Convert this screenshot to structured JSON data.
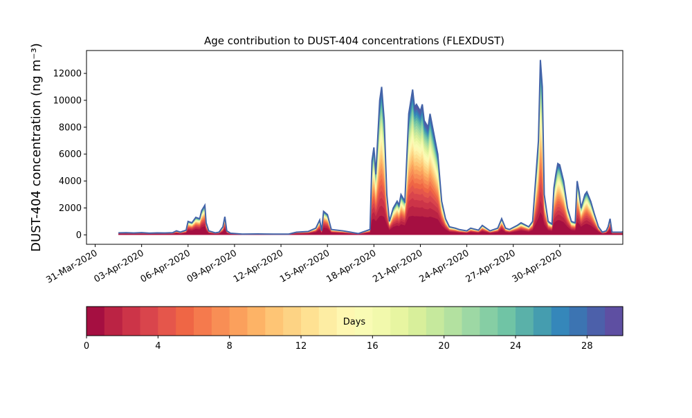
{
  "chart_data": {
    "type": "area",
    "title": "Age contribution to DUST-404 concentrations (FLEXDUST)",
    "ylabel": "DUST-404 concentration (ng m⁻³)",
    "xlabel": "",
    "stacked": true,
    "x_range": [
      "2020-03-31",
      "2020-05-03"
    ],
    "ylim": [
      -700,
      13700
    ],
    "y_ticks": [
      0,
      2000,
      4000,
      6000,
      8000,
      10000,
      12000
    ],
    "x_ticks": [
      "31-Mar-2020",
      "03-Apr-2020",
      "06-Apr-2020",
      "09-Apr-2020",
      "12-Apr-2020",
      "15-Apr-2020",
      "18-Apr-2020",
      "21-Apr-2020",
      "24-Apr-2020",
      "27-Apr-2020",
      "30-Apr-2020"
    ],
    "x_tick_dates": [
      "2020-03-31",
      "2020-04-03",
      "2020-04-06",
      "2020-04-09",
      "2020-04-12",
      "2020-04-15",
      "2020-04-18",
      "2020-04-21",
      "2020-04-24",
      "2020-04-27",
      "2020-04-30"
    ],
    "grid": false,
    "total_series": {
      "name": "",
      "points": [
        [
          "2020-04-01T12:00",
          150
        ],
        [
          "2020-04-02T00:00",
          160
        ],
        [
          "2020-04-02T12:00",
          140
        ],
        [
          "2020-04-03T00:00",
          170
        ],
        [
          "2020-04-03T12:00",
          130
        ],
        [
          "2020-04-04T00:00",
          150
        ],
        [
          "2020-04-04T12:00",
          140
        ],
        [
          "2020-04-05T00:00",
          160
        ],
        [
          "2020-04-05T06:00",
          300
        ],
        [
          "2020-04-05T12:00",
          200
        ],
        [
          "2020-04-05T21:00",
          350
        ],
        [
          "2020-04-06T00:00",
          1000
        ],
        [
          "2020-04-06T06:00",
          900
        ],
        [
          "2020-04-06T12:00",
          1300
        ],
        [
          "2020-04-06T18:00",
          1200
        ],
        [
          "2020-04-06T21:00",
          1800
        ],
        [
          "2020-04-07T02:00",
          2200
        ],
        [
          "2020-04-07T04:00",
          900
        ],
        [
          "2020-04-07T08:00",
          300
        ],
        [
          "2020-04-07T18:00",
          150
        ],
        [
          "2020-04-08T00:00",
          200
        ],
        [
          "2020-04-08T06:00",
          600
        ],
        [
          "2020-04-08T09:00",
          1350
        ],
        [
          "2020-04-08T12:00",
          300
        ],
        [
          "2020-04-08T18:00",
          120
        ],
        [
          "2020-04-09T12:00",
          60
        ],
        [
          "2020-04-10T12:00",
          70
        ],
        [
          "2020-04-11T12:00",
          60
        ],
        [
          "2020-04-12T12:00",
          60
        ],
        [
          "2020-04-13T00:00",
          200
        ],
        [
          "2020-04-13T18:00",
          250
        ],
        [
          "2020-04-14T06:00",
          500
        ],
        [
          "2020-04-14T12:00",
          1100
        ],
        [
          "2020-04-14T15:00",
          300
        ],
        [
          "2020-04-14T18:00",
          1750
        ],
        [
          "2020-04-15T00:00",
          1500
        ],
        [
          "2020-04-15T06:00",
          400
        ],
        [
          "2020-04-16T00:00",
          300
        ],
        [
          "2020-04-16T12:00",
          200
        ],
        [
          "2020-04-17T00:00",
          100
        ],
        [
          "2020-04-17T12:00",
          300
        ],
        [
          "2020-04-17T18:00",
          400
        ],
        [
          "2020-04-17T21:00",
          5500
        ],
        [
          "2020-04-18T00:00",
          6500
        ],
        [
          "2020-04-18T03:00",
          4500
        ],
        [
          "2020-04-18T09:00",
          10000
        ],
        [
          "2020-04-18T12:00",
          11000
        ],
        [
          "2020-04-18T16:00",
          8500
        ],
        [
          "2020-04-18T20:00",
          3000
        ],
        [
          "2020-04-19T00:00",
          1000
        ],
        [
          "2020-04-19T06:00",
          2000
        ],
        [
          "2020-04-19T12:00",
          2500
        ],
        [
          "2020-04-19T15:00",
          2200
        ],
        [
          "2020-04-19T18:00",
          3000
        ],
        [
          "2020-04-20T00:00",
          2500
        ],
        [
          "2020-04-20T06:00",
          9000
        ],
        [
          "2020-04-20T12:00",
          10800
        ],
        [
          "2020-04-20T15:00",
          9500
        ],
        [
          "2020-04-20T18:00",
          9700
        ],
        [
          "2020-04-21T00:00",
          9200
        ],
        [
          "2020-04-21T03:00",
          9700
        ],
        [
          "2020-04-21T06:00",
          8500
        ],
        [
          "2020-04-21T12:00",
          8000
        ],
        [
          "2020-04-21T15:00",
          9000
        ],
        [
          "2020-04-21T21:00",
          7500
        ],
        [
          "2020-04-22T03:00",
          6000
        ],
        [
          "2020-04-22T09:00",
          2500
        ],
        [
          "2020-04-22T15:00",
          1200
        ],
        [
          "2020-04-22T21:00",
          600
        ],
        [
          "2020-04-23T06:00",
          500
        ],
        [
          "2020-04-23T12:00",
          400
        ],
        [
          "2020-04-24T00:00",
          300
        ],
        [
          "2020-04-24T06:00",
          500
        ],
        [
          "2020-04-24T18:00",
          350
        ],
        [
          "2020-04-25T00:00",
          700
        ],
        [
          "2020-04-25T06:00",
          500
        ],
        [
          "2020-04-25T12:00",
          300
        ],
        [
          "2020-04-26T00:00",
          500
        ],
        [
          "2020-04-26T06:00",
          1200
        ],
        [
          "2020-04-26T12:00",
          500
        ],
        [
          "2020-04-26T18:00",
          400
        ],
        [
          "2020-04-27T06:00",
          700
        ],
        [
          "2020-04-27T12:00",
          900
        ],
        [
          "2020-04-28T00:00",
          600
        ],
        [
          "2020-04-28T06:00",
          1000
        ],
        [
          "2020-04-28T15:00",
          7000
        ],
        [
          "2020-04-28T18:00",
          13000
        ],
        [
          "2020-04-28T21:00",
          11000
        ],
        [
          "2020-04-29T00:00",
          3000
        ],
        [
          "2020-04-29T06:00",
          1000
        ],
        [
          "2020-04-29T12:00",
          800
        ],
        [
          "2020-04-29T15:00",
          3500
        ],
        [
          "2020-04-29T18:00",
          4500
        ],
        [
          "2020-04-29T21:00",
          5300
        ],
        [
          "2020-04-30T00:00",
          5200
        ],
        [
          "2020-04-30T06:00",
          4000
        ],
        [
          "2020-04-30T12:00",
          2000
        ],
        [
          "2020-04-30T18:00",
          1000
        ],
        [
          "2020-05-01T00:00",
          900
        ],
        [
          "2020-05-01T03:00",
          4000
        ],
        [
          "2020-05-01T06:00",
          3200
        ],
        [
          "2020-05-01T09:00",
          2000
        ],
        [
          "2020-05-01T12:00",
          2500
        ],
        [
          "2020-05-01T15:00",
          3000
        ],
        [
          "2020-05-01T18:00",
          3200
        ],
        [
          "2020-05-02T00:00",
          2500
        ],
        [
          "2020-05-02T06:00",
          1500
        ],
        [
          "2020-05-02T12:00",
          600
        ],
        [
          "2020-05-02T18:00",
          200
        ],
        [
          "2020-05-03T00:00",
          300
        ],
        [
          "2020-05-03T03:00",
          600
        ],
        [
          "2020-05-03T06:00",
          1200
        ],
        [
          "2020-05-03T09:00",
          200
        ],
        [
          "2020-05-04T00:00",
          200
        ],
        [
          "2020-05-04T03:00",
          250
        ]
      ]
    },
    "age_bands_days": 30,
    "colorbar": {
      "label": "Days",
      "ticks": [
        0,
        4,
        8,
        12,
        16,
        20,
        24,
        28
      ],
      "range": [
        0,
        30
      ],
      "colors": [
        "#a50f41",
        "#bb2344",
        "#cc3448",
        "#d9454c",
        "#e5564b",
        "#ef6645",
        "#f57a4d",
        "#f88e55",
        "#fba05c",
        "#fdb366",
        "#fec575",
        "#fdd384",
        "#fee192",
        "#fdeda3",
        "#fef7b1",
        "#f9fbb4",
        "#f2f9ac",
        "#e7f5a1",
        "#d8ef9b",
        "#c6e99d",
        "#b3e1a0",
        "#9dd8a4",
        "#86cea4",
        "#70c4a5",
        "#5ab1a9",
        "#459daf",
        "#3587ba",
        "#3c74b2",
        "#4c60aa",
        "#5e4fa2"
      ]
    }
  }
}
